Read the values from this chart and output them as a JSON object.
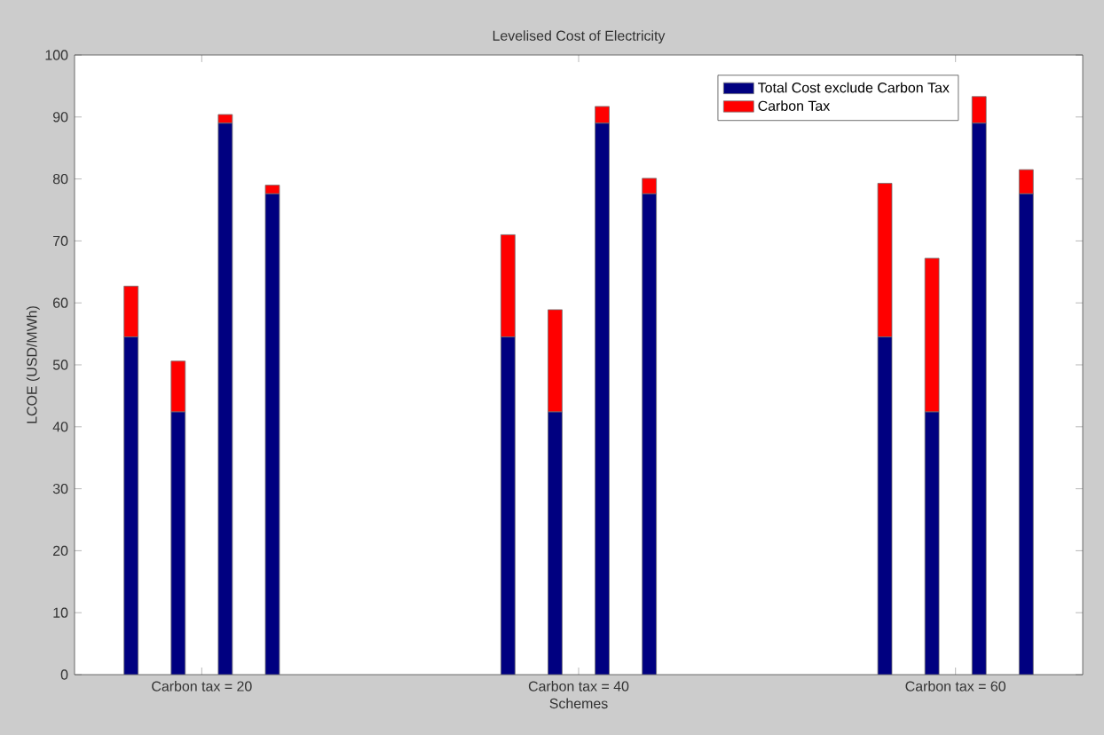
{
  "chart_data": {
    "type": "bar",
    "title": "Levelised Cost of Electricity",
    "xlabel": "Schemes",
    "ylabel": "LCOE (USD/MWh)",
    "categories": [
      null,
      null,
      null,
      null,
      null,
      "Carbon tax = 20",
      null,
      null,
      null,
      null,
      null,
      null,
      null,
      null,
      null,
      null,
      null,
      null,
      null,
      null,
      null,
      "Carbon tax = 40",
      null,
      null,
      null,
      null,
      null,
      null,
      null,
      null,
      null,
      null,
      null,
      null,
      null,
      null,
      null,
      "Carbon tax = 60",
      null,
      null,
      null,
      null,
      null
    ],
    "series": [
      {
        "name": "Total Cost exclude Carbon Tax",
        "color": "#000080",
        "values": [
          null,
          null,
          54.5,
          null,
          42.4,
          null,
          89.0,
          null,
          77.6,
          null,
          null,
          null,
          null,
          null,
          null,
          null,
          null,
          null,
          54.5,
          null,
          42.4,
          null,
          89.0,
          null,
          77.6,
          null,
          null,
          null,
          null,
          null,
          null,
          null,
          null,
          null,
          54.5,
          null,
          42.4,
          null,
          89.0,
          null,
          77.6,
          null,
          null
        ]
      },
      {
        "name": "Carbon Tax",
        "color": "#ff0000",
        "values": [
          null,
          null,
          8.2,
          null,
          8.2,
          null,
          1.4,
          null,
          1.4,
          null,
          null,
          null,
          null,
          null,
          null,
          null,
          null,
          null,
          16.5,
          null,
          16.5,
          null,
          2.7,
          null,
          2.5,
          null,
          null,
          null,
          null,
          null,
          null,
          null,
          null,
          null,
          24.8,
          null,
          24.8,
          null,
          4.3,
          null,
          3.9,
          null,
          null
        ]
      }
    ],
    "stacked": true,
    "legend": "top right",
    "ylim": [
      0,
      100
    ],
    "yticks": [
      0,
      10,
      20,
      30,
      40,
      50,
      60,
      70,
      80,
      90,
      100
    ]
  }
}
